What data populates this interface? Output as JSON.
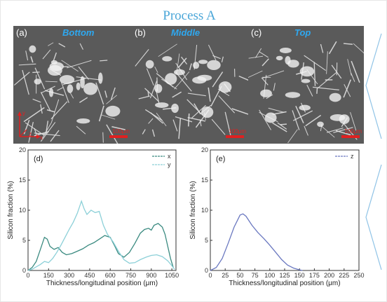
{
  "title": "Process A",
  "panels": [
    {
      "label": "(a)",
      "tag": "Bottom",
      "scale": "100μm"
    },
    {
      "label": "(b)",
      "tag": "Middle",
      "scale": "100μm"
    },
    {
      "label": "(c)",
      "tag": "Top",
      "scale": "100μm"
    }
  ],
  "axes_glyph": {
    "y": "y",
    "x": "x",
    "z": "z"
  },
  "chart_data": [
    {
      "type": "line",
      "panel_label": "(d)",
      "xlabel": "Thickness/longitudinal position (μm)",
      "ylabel": "Silicon fraction (%)",
      "xlim": [
        0,
        1080
      ],
      "ylim": [
        0,
        20
      ],
      "xticks": [
        0,
        150,
        300,
        450,
        600,
        750,
        900,
        1050
      ],
      "yticks": [
        0,
        5,
        10,
        15,
        20
      ],
      "legend_position": "top-right",
      "series": [
        {
          "name": "x",
          "color": "#3a8a80",
          "x": [
            0,
            30,
            60,
            90,
            120,
            140,
            160,
            190,
            220,
            250,
            280,
            320,
            360,
            400,
            440,
            480,
            520,
            560,
            600,
            630,
            660,
            700,
            740,
            780,
            820,
            850,
            880,
            900,
            920,
            950,
            980,
            1000,
            1020,
            1040,
            1060
          ],
          "y": [
            0,
            0.5,
            1.5,
            3.5,
            5.5,
            5.2,
            4,
            3.5,
            3.8,
            3,
            2.6,
            2.8,
            3.2,
            3.6,
            4.2,
            4.6,
            5.2,
            5.8,
            5.5,
            4.2,
            2.8,
            2.2,
            3,
            4.5,
            6.2,
            6.8,
            7,
            6.7,
            7.5,
            7.8,
            7.2,
            6,
            4,
            2,
            0.5
          ]
        },
        {
          "name": "y",
          "color": "#8cd0d8",
          "x": [
            0,
            30,
            60,
            90,
            120,
            150,
            180,
            210,
            240,
            270,
            300,
            330,
            360,
            390,
            410,
            430,
            460,
            490,
            520,
            550,
            580,
            620,
            660,
            700,
            740,
            780,
            820,
            860,
            900,
            940,
            980,
            1020,
            1050,
            1070
          ],
          "y": [
            0,
            0.2,
            0.6,
            1,
            1.5,
            1.3,
            2,
            3,
            4.2,
            5.5,
            6.8,
            8,
            9.5,
            11.5,
            10.2,
            9.3,
            10,
            9.6,
            9.8,
            7.5,
            6,
            4.8,
            3.2,
            1.8,
            1.2,
            1.3,
            1.8,
            2.2,
            2.5,
            2.6,
            2.3,
            1.6,
            0.8,
            0.2
          ]
        }
      ]
    },
    {
      "type": "line",
      "panel_label": "(e)",
      "xlabel": "Thickness/longitudinal position (μm)",
      "ylabel": "Silicon fraction (%)",
      "xlim": [
        0,
        250
      ],
      "ylim": [
        0,
        20
      ],
      "xticks": [
        0,
        25,
        50,
        75,
        100,
        125,
        150,
        175,
        200,
        225,
        250
      ],
      "yticks": [
        0,
        5,
        10,
        15,
        20
      ],
      "legend_position": "top-right",
      "series": [
        {
          "name": "z",
          "color": "#6a78c0",
          "x": [
            0,
            10,
            20,
            30,
            40,
            50,
            55,
            60,
            70,
            80,
            90,
            100,
            110,
            120,
            130,
            140,
            150,
            155
          ],
          "y": [
            0,
            0.5,
            2,
            4.5,
            7.2,
            9.2,
            9.4,
            9,
            7.5,
            6.3,
            5.3,
            4.2,
            3,
            1.8,
            0.9,
            0.4,
            0.1,
            0
          ]
        }
      ]
    }
  ]
}
